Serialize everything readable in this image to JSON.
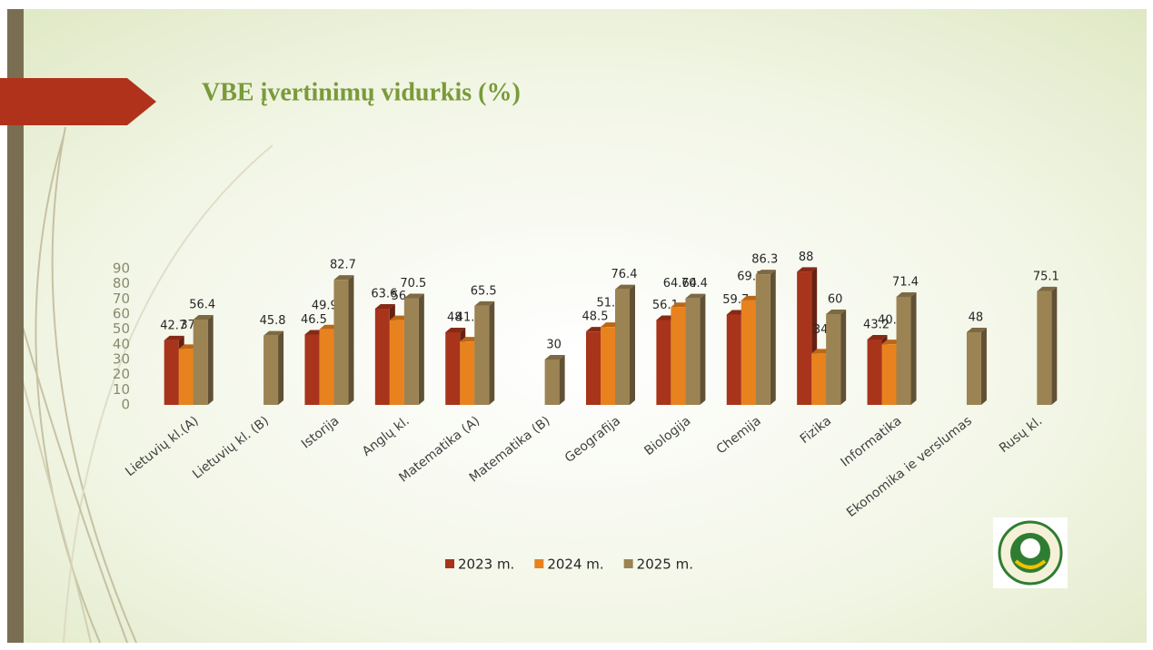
{
  "chart_data": {
    "type": "bar",
    "title": "VBE įvertinimų vidurkis (%)",
    "categories": [
      "Lietuvių kl.(A)",
      "Lietuvių kl. (B)",
      "Istorija",
      "Anglų kl.",
      "Matematika (A)",
      "Matematika (B)",
      "Geografija",
      "Biologija",
      "Chemija",
      "Fizika",
      "Informatika",
      "Ekonomika ie verslumas",
      "Rusų kl."
    ],
    "series": [
      {
        "name": "2023 m.",
        "color": "#a8341c",
        "values": [
          42.7,
          null,
          46.5,
          63.6,
          48,
          null,
          48.5,
          56.1,
          59.7,
          88,
          43.2,
          null,
          null
        ]
      },
      {
        "name": "2024 m.",
        "color": "#e8821e",
        "values": [
          37,
          null,
          49.94,
          56,
          41.9,
          null,
          51.5,
          64.64,
          69.1,
          34,
          40.1,
          null,
          null
        ]
      },
      {
        "name": "2025 m.",
        "color": "#9c8354",
        "values": [
          56.4,
          45.8,
          82.7,
          70.5,
          65.5,
          30,
          76.4,
          70.4,
          86.3,
          60,
          71.4,
          48,
          75.1
        ]
      }
    ],
    "ylim": [
      0,
      90
    ],
    "yticks": [
      0,
      10,
      20,
      30,
      40,
      50,
      60,
      70,
      80,
      90
    ],
    "grid": false,
    "legend": "bottom"
  }
}
